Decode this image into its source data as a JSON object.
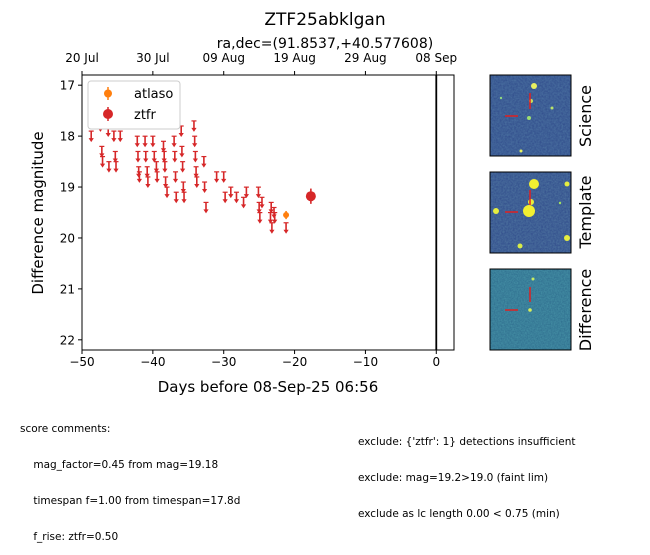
{
  "chart_data": {
    "type": "scatter",
    "title": "ZTF25abklgan",
    "subtitle": "ra,dec=(91.8537,+40.577608)",
    "xlabel": "Days before 08-Sep-25 06:56",
    "ylabel": "Difference magnitude",
    "xlim": [
      -50,
      2.5
    ],
    "ylim": [
      22.2,
      16.8
    ],
    "x_ticks": [
      -50,
      -40,
      -30,
      -20,
      -10,
      0
    ],
    "x_tick_labels": [
      "−50",
      "−40",
      "−30",
      "−20",
      "−10",
      "0"
    ],
    "y_ticks": [
      17,
      18,
      19,
      20,
      21,
      22
    ],
    "y_tick_labels": [
      "17",
      "18",
      "19",
      "20",
      "21",
      "22"
    ],
    "top_ticks": [
      {
        "x": -50,
        "label": "20 Jul"
      },
      {
        "x": -40,
        "label": "30 Jul"
      },
      {
        "x": -30,
        "label": "09 Aug"
      },
      {
        "x": -20,
        "label": "19 Aug"
      },
      {
        "x": -10,
        "label": "29 Aug"
      },
      {
        "x": 0,
        "label": "08 Sep"
      }
    ],
    "vertical_line_x": 0,
    "legend": [
      {
        "name": "atlaso",
        "color": "#ff7f0e"
      },
      {
        "name": "ztfr",
        "color": "#d62728"
      }
    ],
    "upper_limits": {
      "ztfr": [
        [
          -48.7,
          18.0
        ],
        [
          -47.4,
          17.8
        ],
        [
          -46.3,
          17.9
        ],
        [
          -45.5,
          18.0
        ],
        [
          -44.6,
          18.0
        ],
        [
          -47.2,
          18.3
        ],
        [
          -47.1,
          18.5
        ],
        [
          -46.2,
          18.6
        ],
        [
          -45.3,
          18.4
        ],
        [
          -45.2,
          18.6
        ],
        [
          -42.2,
          18.1
        ],
        [
          -42.1,
          18.4
        ],
        [
          -42.0,
          18.7
        ],
        [
          -41.9,
          18.8
        ],
        [
          -41.1,
          18.1
        ],
        [
          -41.0,
          18.4
        ],
        [
          -40.8,
          18.7
        ],
        [
          -40.7,
          18.9
        ],
        [
          -40.0,
          18.1
        ],
        [
          -39.8,
          18.4
        ],
        [
          -39.5,
          18.6
        ],
        [
          -39.4,
          18.8
        ],
        [
          -38.5,
          18.2
        ],
        [
          -38.4,
          18.4
        ],
        [
          -38.3,
          18.6
        ],
        [
          -38.2,
          18.9
        ],
        [
          -38.0,
          19.1
        ],
        [
          -37.0,
          18.1
        ],
        [
          -36.9,
          18.4
        ],
        [
          -36.8,
          18.8
        ],
        [
          -36.7,
          19.2
        ],
        [
          -36.0,
          17.9
        ],
        [
          -35.9,
          18.3
        ],
        [
          -35.8,
          18.6
        ],
        [
          -35.7,
          19.0
        ],
        [
          -35.6,
          19.2
        ],
        [
          -34.2,
          17.8
        ],
        [
          -34.1,
          18.1
        ],
        [
          -34.0,
          18.4
        ],
        [
          -33.9,
          18.7
        ],
        [
          -33.8,
          18.9
        ],
        [
          -32.8,
          18.5
        ],
        [
          -32.7,
          19.0
        ],
        [
          -32.5,
          19.4
        ],
        [
          -31.0,
          18.8
        ],
        [
          -30.0,
          18.8
        ],
        [
          -29.8,
          19.2
        ],
        [
          -29.0,
          19.1
        ],
        [
          -28.2,
          19.2
        ],
        [
          -27.2,
          19.3
        ],
        [
          -26.8,
          19.1
        ],
        [
          -25.0,
          19.4
        ],
        [
          -24.9,
          19.6
        ],
        [
          -24.6,
          19.3
        ],
        [
          -23.4,
          19.6
        ],
        [
          -23.2,
          19.8
        ],
        [
          -22.9,
          19.5
        ],
        [
          -25.1,
          19.1
        ],
        [
          -23.3,
          19.4
        ],
        [
          -22.8,
          19.6
        ],
        [
          -21.2,
          19.8
        ]
      ]
    },
    "detections": {
      "atlaso": [
        [
          -21.2,
          19.55,
          0.08
        ]
      ],
      "ztfr": [
        [
          -17.7,
          19.18,
          0.15
        ]
      ]
    },
    "panels": [
      {
        "label": "Science"
      },
      {
        "label": "Template"
      },
      {
        "label": "Difference"
      }
    ]
  },
  "notes": {
    "left": [
      "score comments:",
      "    mag_factor=0.45 from mag=19.18",
      "    timespan f=1.00 from timespan=17.8d",
      "    f_rise: ztfr=0.50"
    ],
    "right": [
      "exclude: {'ztfr': 1} detections insufficient",
      "exclude: mag=19.2>19.0 (faint lim)",
      "exclude as lc length 0.00 < 0.75 (min)"
    ]
  }
}
